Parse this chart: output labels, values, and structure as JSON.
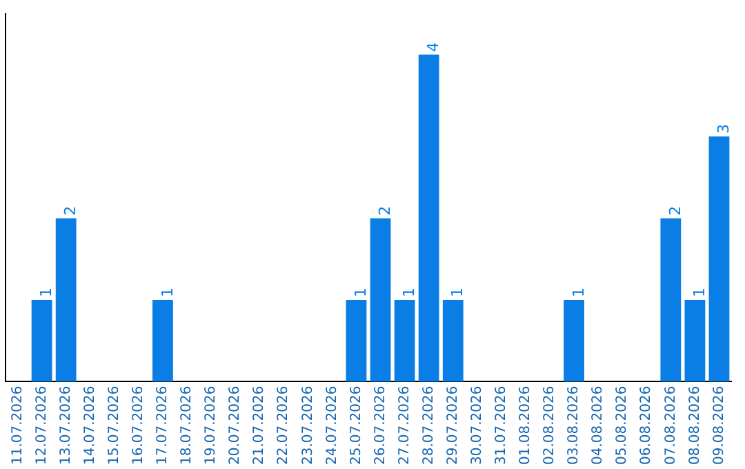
{
  "chart_data": {
    "type": "bar",
    "categories": [
      "11.07.2026",
      "12.07.2026",
      "13.07.2026",
      "14.07.2026",
      "15.07.2026",
      "16.07.2026",
      "17.07.2026",
      "18.07.2026",
      "19.07.2026",
      "20.07.2026",
      "21.07.2026",
      "22.07.2026",
      "23.07.2026",
      "24.07.2026",
      "25.07.2026",
      "26.07.2026",
      "27.07.2026",
      "28.07.2026",
      "29.07.2026",
      "30.07.2026",
      "31.07.2026",
      "01.08.2026",
      "02.08.2026",
      "03.08.2026",
      "04.08.2026",
      "05.08.2026",
      "06.08.2026",
      "07.08.2026",
      "08.08.2026",
      "09.08.2026"
    ],
    "values": [
      0,
      1,
      2,
      0,
      0,
      0,
      1,
      0,
      0,
      0,
      0,
      0,
      0,
      0,
      1,
      2,
      1,
      4,
      1,
      0,
      0,
      0,
      0,
      1,
      0,
      0,
      0,
      2,
      1,
      3
    ],
    "value_labels": [
      null,
      "1",
      "2",
      null,
      null,
      null,
      "1",
      null,
      null,
      null,
      null,
      null,
      null,
      null,
      "1",
      "2",
      "1",
      "4",
      "1",
      null,
      null,
      null,
      null,
      "1",
      null,
      null,
      null,
      "2",
      "1",
      "3"
    ],
    "color": "#0a7ee4",
    "grid": false,
    "legend": false,
    "tick_labels": "x"
  }
}
